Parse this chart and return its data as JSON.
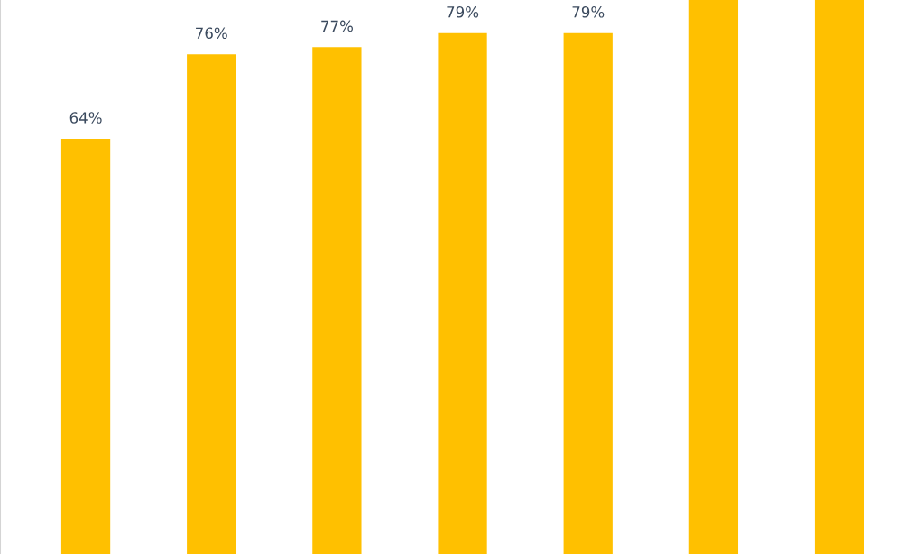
{
  "chart_data": {
    "type": "bar",
    "categories": [
      null,
      null,
      null,
      null,
      null,
      null,
      null
    ],
    "values": [
      64,
      76,
      77,
      79,
      79,
      83.7,
      83.7
    ],
    "color": "#ffc000",
    "value_labels": [
      "64%",
      "76%",
      "77%",
      "79%",
      "79%",
      null,
      null
    ],
    "ylim": [
      5.1,
      83.7
    ]
  }
}
